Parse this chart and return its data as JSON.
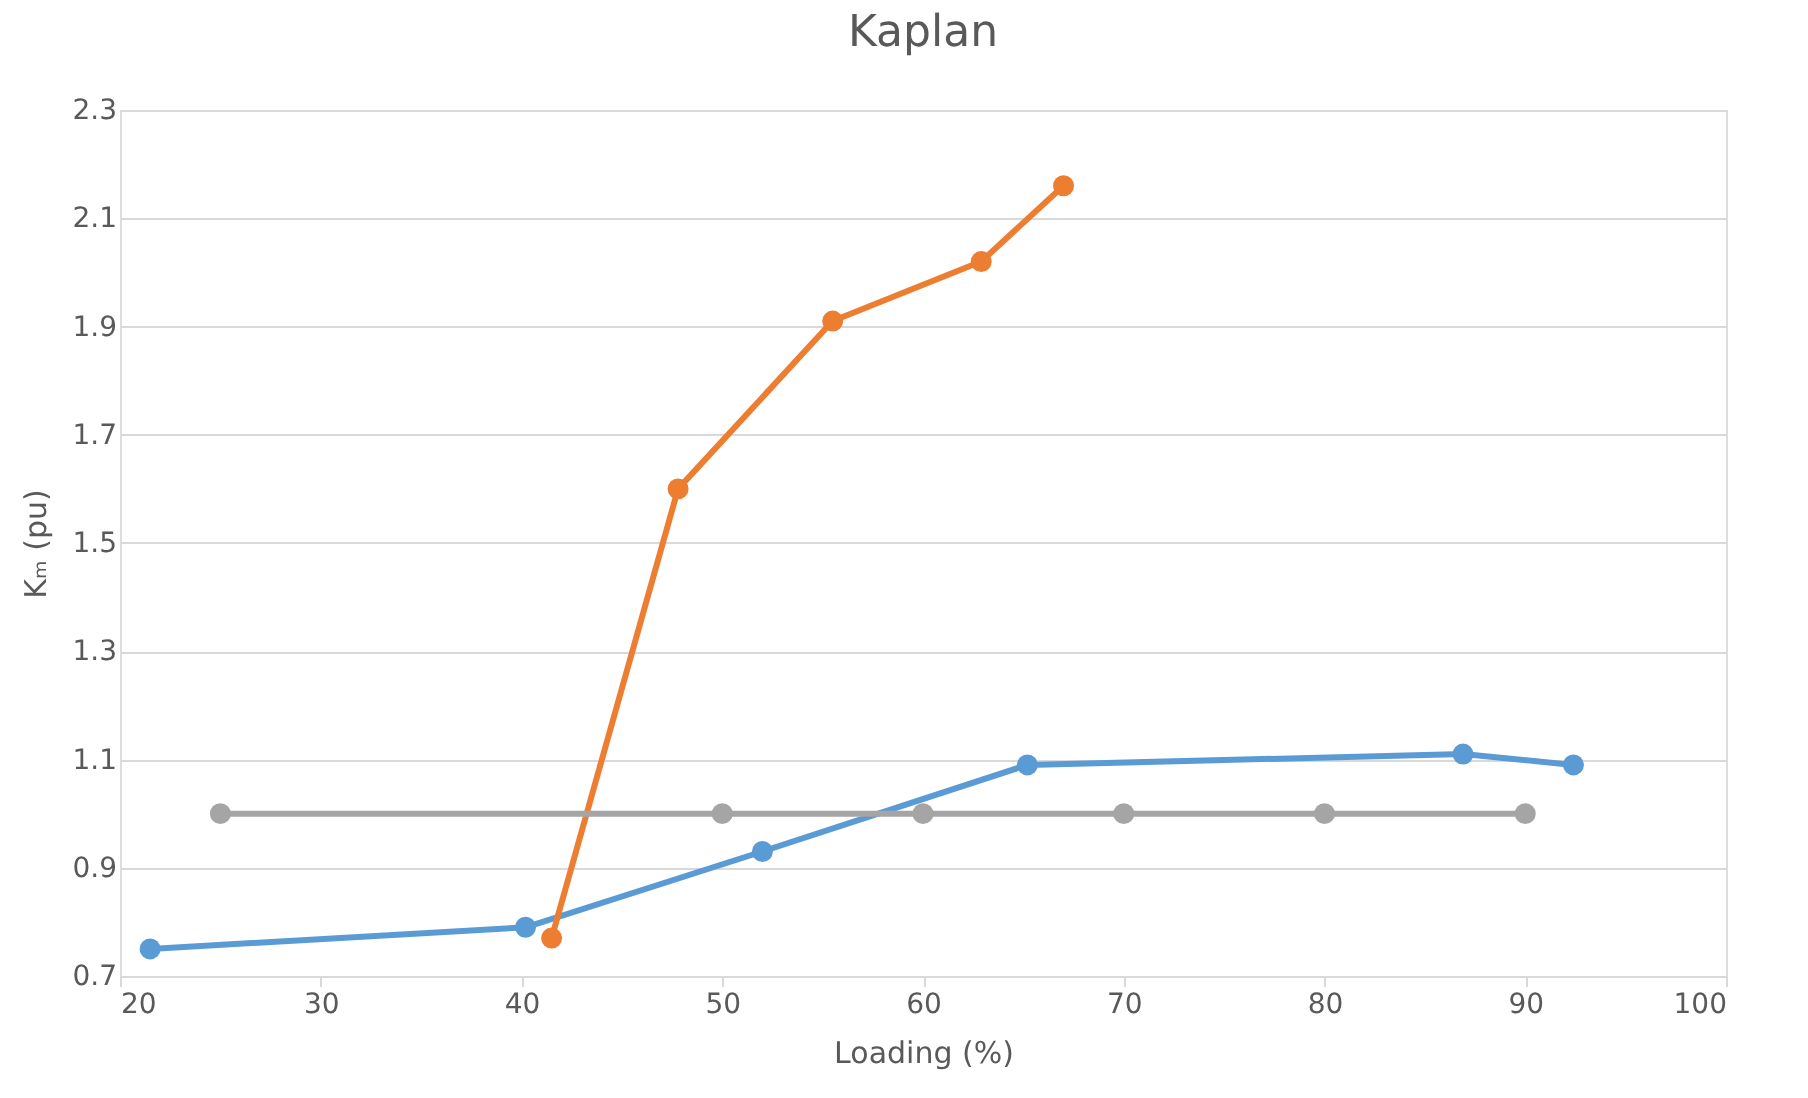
{
  "chart_data": {
    "type": "line",
    "title": "Kaplan",
    "xlabel": "Loading (%)",
    "ylabel": "Kₘ (pu)",
    "xlim": [
      20,
      100
    ],
    "xticks": [
      20,
      30,
      40,
      50,
      60,
      70,
      80,
      90,
      100
    ],
    "ylim": [
      0.7,
      2.3
    ],
    "yticks": [
      0.7,
      0.9,
      1.1,
      1.3,
      1.5,
      1.7,
      1.9,
      2.1,
      2.3
    ],
    "grid": "y",
    "marker": "circle",
    "line_style": "solid",
    "legend": false,
    "series": [
      {
        "color": "#5b9bd5",
        "x": [
          21.5,
          40.2,
          52.0,
          65.2,
          86.9,
          92.4
        ],
        "values": [
          0.75,
          0.79,
          0.93,
          1.09,
          1.11,
          1.09
        ]
      },
      {
        "color": "#ed7d31",
        "x": [
          41.5,
          47.8,
          55.5,
          62.9,
          67.0
        ],
        "values": [
          0.77,
          1.6,
          1.91,
          2.02,
          2.16
        ]
      },
      {
        "color": "#a5a5a5",
        "x": [
          25,
          50,
          60,
          70,
          80,
          90
        ],
        "values": [
          1.0,
          1.0,
          1.0,
          1.0,
          1.0,
          1.0
        ]
      }
    ]
  }
}
